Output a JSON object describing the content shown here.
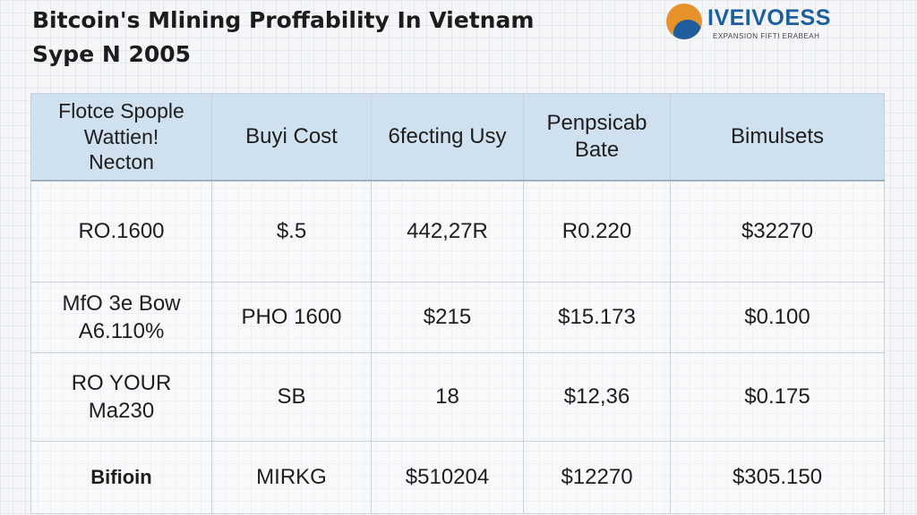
{
  "header": {
    "title_line1": "Bitcoin's Mlining Proffability In Vietnam",
    "title_line2": "Sype N 2005"
  },
  "logo": {
    "icon": "sun-globe-logo-icon",
    "wordmark": "IVEIVOESS",
    "tagline": "EXPANSION FIFTI ERABEAH"
  },
  "table": {
    "headers": [
      "Flotce Spople\nWattien!\nNecton",
      "Buyi Cost",
      "6fecting Usy",
      "Penpsicab\nBate",
      "Bimulsets"
    ],
    "rows": [
      [
        "RO.1600",
        "$.5",
        "442,27R",
        "R0.220",
        "$32270"
      ],
      [
        "MfO 3e Bow\nA6.110%",
        "PHO 1600",
        "$215",
        "$15.173",
        "$0.100"
      ],
      [
        "RO YOUR\nMa230",
        "SB",
        "18",
        "$12,36",
        "$0.175"
      ],
      [
        "Bifioin",
        "MIRKG",
        "$510204",
        "$12270",
        "$305.150"
      ]
    ]
  }
}
